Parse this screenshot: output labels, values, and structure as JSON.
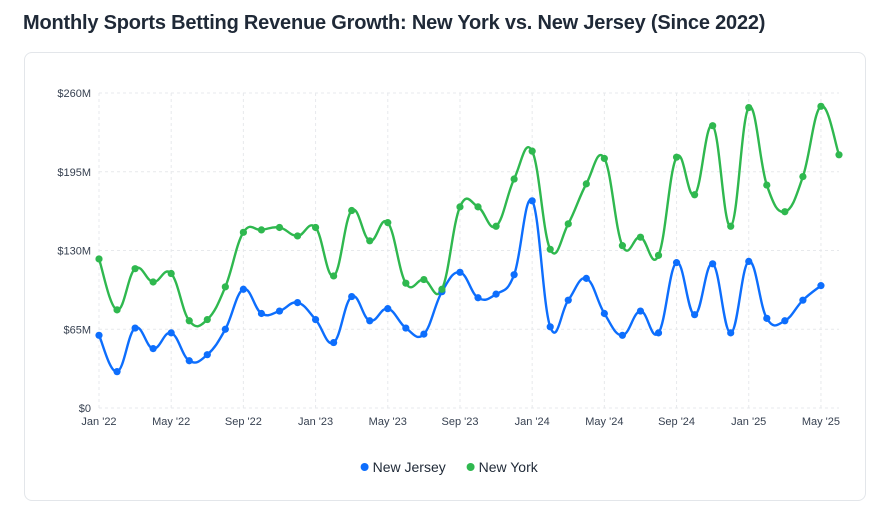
{
  "page": {
    "title": "Monthly Sports Betting Revenue Growth: New York vs. New Jersey (Since 2022)"
  },
  "chart_data": {
    "type": "line",
    "title": "Monthly Sports Betting Revenue Growth: New York vs. New Jersey (Since 2022)",
    "xlabel": "",
    "ylabel": "",
    "ylim": [
      0,
      260
    ],
    "y_ticks": [
      0,
      65,
      130,
      195,
      260
    ],
    "y_tick_labels": [
      "$0",
      "$65M",
      "$130M",
      "$195M",
      "$260M"
    ],
    "x": [
      "Jan '22",
      "Feb '22",
      "Mar '22",
      "Apr '22",
      "May '22",
      "Jun '22",
      "Jul '22",
      "Aug '22",
      "Sep '22",
      "Oct '22",
      "Nov '22",
      "Dec '22",
      "Jan '23",
      "Feb '23",
      "Mar '23",
      "Apr '23",
      "May '23",
      "Jun '23",
      "Jul '23",
      "Aug '23",
      "Sep '23",
      "Oct '23",
      "Nov '23",
      "Dec '23",
      "Jan '24",
      "Feb '24",
      "Mar '24",
      "Apr '24",
      "May '24",
      "Jun '24",
      "Jul '24",
      "Aug '24",
      "Sep '24",
      "Oct '24",
      "Nov '24",
      "Dec '24",
      "Jan '25",
      "Feb '25",
      "Mar '25",
      "Apr '25",
      "May '25",
      "Jun '25"
    ],
    "x_tick_labels": [
      "Jan '22",
      "May '22",
      "Sep '22",
      "Jan '23",
      "May '23",
      "Sep '23",
      "Jan '24",
      "May '24",
      "Sep '24",
      "Jan '25",
      "May '25"
    ],
    "x_tick_indices": [
      0,
      4,
      8,
      12,
      16,
      20,
      24,
      28,
      32,
      36,
      40
    ],
    "grid": true,
    "legend_position": "bottom",
    "series": [
      {
        "name": "New Jersey",
        "color": "#0d6efd",
        "values": [
          60,
          30,
          66,
          49,
          62,
          39,
          44,
          65,
          98,
          78,
          80,
          87,
          73,
          54,
          92,
          72,
          82,
          66,
          61,
          96,
          112,
          91,
          94,
          110,
          171,
          67,
          89,
          107,
          78,
          60,
          80,
          62,
          120,
          77,
          119,
          62,
          121,
          74,
          72,
          89,
          101,
          null
        ]
      },
      {
        "name": "New York",
        "color": "#2fb84f",
        "values": [
          123,
          81,
          115,
          104,
          111,
          72,
          73,
          100,
          145,
          147,
          149,
          142,
          149,
          109,
          163,
          138,
          153,
          103,
          106,
          98,
          166,
          166,
          150,
          189,
          212,
          131,
          152,
          185,
          206,
          134,
          141,
          126,
          207,
          176,
          233,
          150,
          248,
          184,
          162,
          191,
          249,
          209
        ]
      }
    ]
  }
}
